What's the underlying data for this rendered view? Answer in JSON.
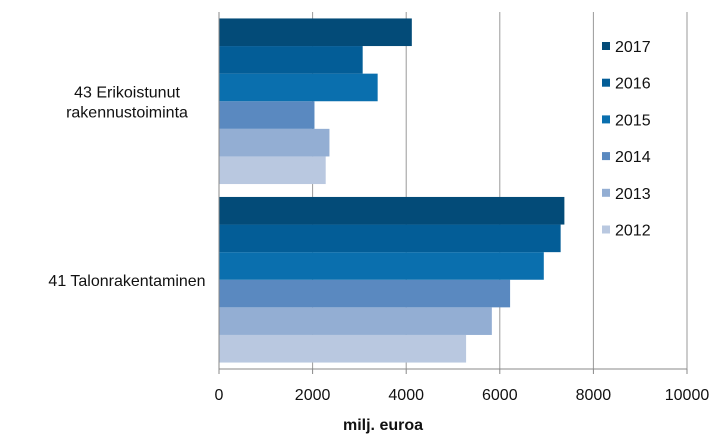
{
  "chart_data": {
    "type": "bar",
    "orientation": "horizontal",
    "categories": [
      "41 Talonrakentaminen",
      "43 Erikoistunut rakennustoiminta"
    ],
    "category_label_lines": [
      [
        "41 Talonrakentaminen"
      ],
      [
        "43 Erikoistunut",
        "rakennustoiminta"
      ]
    ],
    "series": [
      {
        "name": "2012",
        "color": "#b9c8e0",
        "values": [
          5280,
          2280
        ]
      },
      {
        "name": "2013",
        "color": "#93aed3",
        "values": [
          5830,
          2360
        ]
      },
      {
        "name": "2014",
        "color": "#5a89c0",
        "values": [
          6220,
          2040
        ]
      },
      {
        "name": "2015",
        "color": "#0a6fae",
        "values": [
          6940,
          3390
        ]
      },
      {
        "name": "2016",
        "color": "#035d97",
        "values": [
          7300,
          3070
        ]
      },
      {
        "name": "2017",
        "color": "#034b78",
        "values": [
          7380,
          4120
        ]
      }
    ],
    "xlabel": "milj. euroa",
    "xlim": [
      0,
      10000
    ],
    "xticks": [
      0,
      2000,
      4000,
      6000,
      8000,
      10000
    ],
    "grid": true,
    "legend_position": "right",
    "legend_order": [
      "2017",
      "2016",
      "2015",
      "2014",
      "2013",
      "2012"
    ]
  }
}
